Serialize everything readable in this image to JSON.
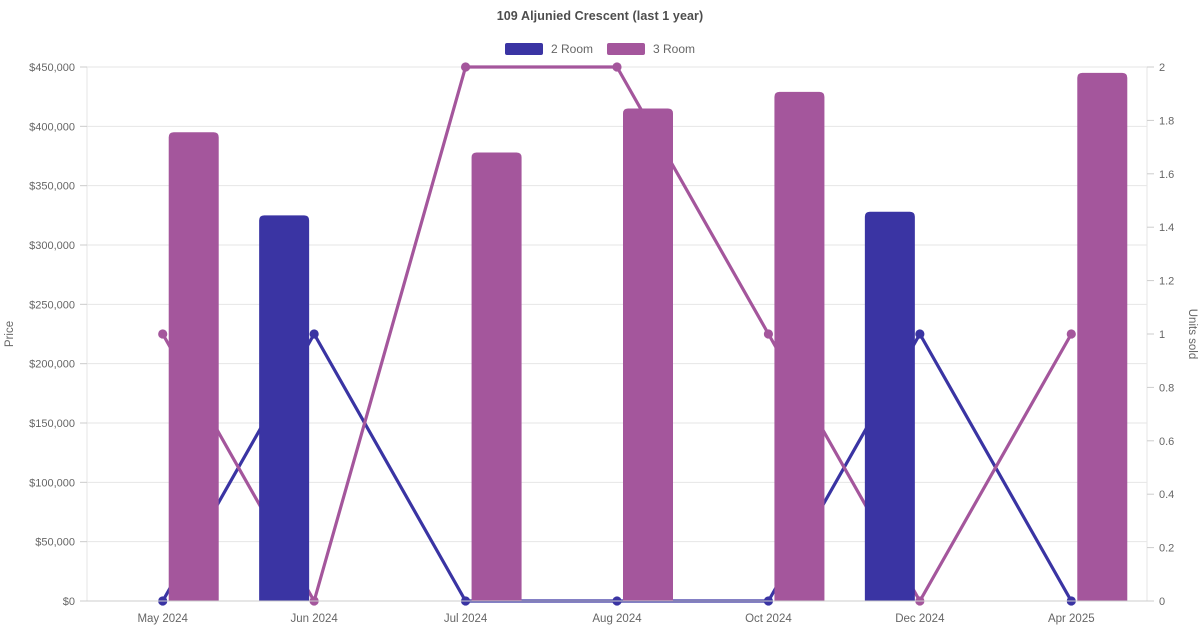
{
  "chart_data": {
    "type": "bar+line combo (grouped bars = price, lines with markers = units sold)",
    "title": "109 Aljunied Crescent (last 1 year)",
    "categories": [
      "May 2024",
      "Jun 2024",
      "Jul 2024",
      "Aug 2024",
      "Oct 2024",
      "Dec 2024",
      "Apr 2025"
    ],
    "series": [
      {
        "name": "2 Room",
        "chart": "bar",
        "axis": "left",
        "color": "#3A34A3",
        "values": [
          null,
          325000,
          null,
          null,
          null,
          328000,
          null
        ]
      },
      {
        "name": "3 Room",
        "chart": "bar",
        "axis": "left",
        "color": "#A4569C",
        "values": [
          395000,
          null,
          378000,
          415000,
          429000,
          null,
          445000
        ]
      },
      {
        "name": "2 Room",
        "chart": "line",
        "axis": "right",
        "color": "#3A34A3",
        "values": [
          0,
          1,
          0,
          0,
          0,
          1,
          0
        ]
      },
      {
        "name": "3 Room",
        "chart": "line",
        "axis": "right",
        "color": "#A4569C",
        "values": [
          1,
          0,
          2,
          2,
          1,
          0,
          1
        ]
      }
    ],
    "y_left": {
      "label": "Price",
      "min": 0,
      "max": 450000,
      "step": 50000,
      "tick_labels": [
        "$0",
        "$50,000",
        "$100,000",
        "$150,000",
        "$200,000",
        "$250,000",
        "$300,000",
        "$350,000",
        "$400,000",
        "$450,000"
      ]
    },
    "y_right": {
      "label": "Units sold",
      "min": 0,
      "max": 2,
      "step": 0.2,
      "tick_labels": [
        "0",
        "0.2",
        "0.4",
        "0.6",
        "0.8",
        "1",
        "1.2",
        "1.4",
        "1.6",
        "1.8",
        "2"
      ]
    },
    "legend": {
      "position": "top",
      "entries": [
        "2 Room",
        "3 Room"
      ]
    },
    "grid": "horizontal only",
    "colors": {
      "grid_line": "#e6e6e6",
      "axis_line": "#cccccc",
      "tick_text": "#666666",
      "title_text": "#4d4d4d"
    }
  }
}
